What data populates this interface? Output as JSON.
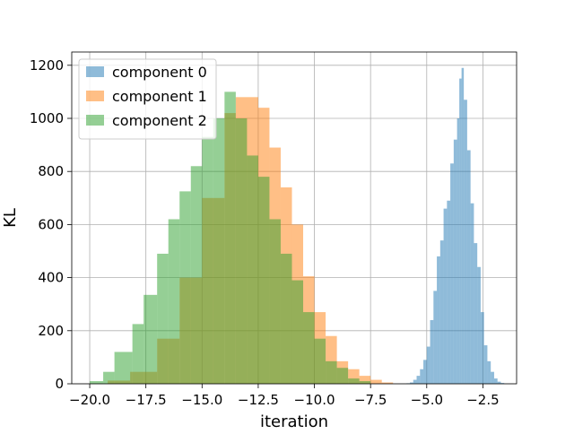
{
  "chart_data": {
    "type": "bar",
    "subtype": "overlapping-histogram",
    "title": "",
    "xlabel": "iteration",
    "ylabel": "KL",
    "xlim": [
      -20.8,
      -1.0
    ],
    "ylim": [
      0,
      1250
    ],
    "xticks": [
      -20.0,
      -17.5,
      -15.0,
      -12.5,
      -10.0,
      -7.5,
      -5.0,
      -2.5
    ],
    "xtick_labels": [
      "−20.0",
      "−17.5",
      "−15.0",
      "−12.5",
      "−10.0",
      "−7.5",
      "−5.0",
      "−2.5"
    ],
    "yticks": [
      0,
      200,
      400,
      600,
      800,
      1000,
      1200
    ],
    "ytick_labels": [
      "0",
      "200",
      "400",
      "600",
      "800",
      "1000",
      "1200"
    ],
    "grid": true,
    "legend_placement": "upper-left",
    "alpha": 0.5,
    "series": [
      {
        "name": "component 0",
        "color": "#1f77b4",
        "bin_edges": [
          -5.9,
          -5.75,
          -5.6,
          -5.45,
          -5.3,
          -5.15,
          -5.0,
          -4.85,
          -4.7,
          -4.55,
          -4.4,
          -4.25,
          -4.1,
          -3.95,
          -3.8,
          -3.65,
          -3.55,
          -3.45,
          -3.35,
          -3.2,
          -3.05,
          -2.9,
          -2.75,
          -2.6,
          -2.45,
          -2.3,
          -2.15,
          -2.0,
          -1.85,
          -1.7,
          -1.55
        ],
        "counts": [
          2,
          5,
          15,
          30,
          55,
          90,
          140,
          240,
          350,
          480,
          540,
          660,
          690,
          830,
          920,
          1000,
          1150,
          1190,
          1070,
          880,
          680,
          530,
          440,
          270,
          145,
          85,
          45,
          20,
          8,
          3
        ]
      },
      {
        "name": "component 1",
        "color": "#ff7f0e",
        "bin_edges": [
          -19.2,
          -18.2,
          -17.0,
          -16.0,
          -15.0,
          -14.0,
          -13.5,
          -12.5,
          -12.0,
          -11.5,
          -11.0,
          -10.5,
          -10.0,
          -9.5,
          -9.0,
          -8.5,
          -8.0,
          -7.5,
          -7.0,
          -6.5
        ],
        "counts": [
          12,
          45,
          170,
          400,
          700,
          1020,
          1080,
          1040,
          890,
          740,
          600,
          405,
          270,
          180,
          85,
          55,
          30,
          15,
          5
        ]
      },
      {
        "name": "component 2",
        "color": "#2ca02c",
        "bin_edges": [
          -20.0,
          -19.4,
          -18.9,
          -18.1,
          -17.6,
          -17.0,
          -16.5,
          -16.0,
          -15.5,
          -15.0,
          -14.5,
          -14.0,
          -13.5,
          -13.0,
          -12.5,
          -12.0,
          -11.5,
          -11.0,
          -10.5,
          -10.0,
          -9.5,
          -9.0,
          -8.5,
          -8.0,
          -7.5
        ],
        "counts": [
          10,
          45,
          120,
          225,
          335,
          490,
          620,
          725,
          820,
          930,
          1000,
          1100,
          1000,
          860,
          780,
          620,
          490,
          390,
          270,
          170,
          85,
          60,
          20,
          10
        ]
      }
    ]
  }
}
